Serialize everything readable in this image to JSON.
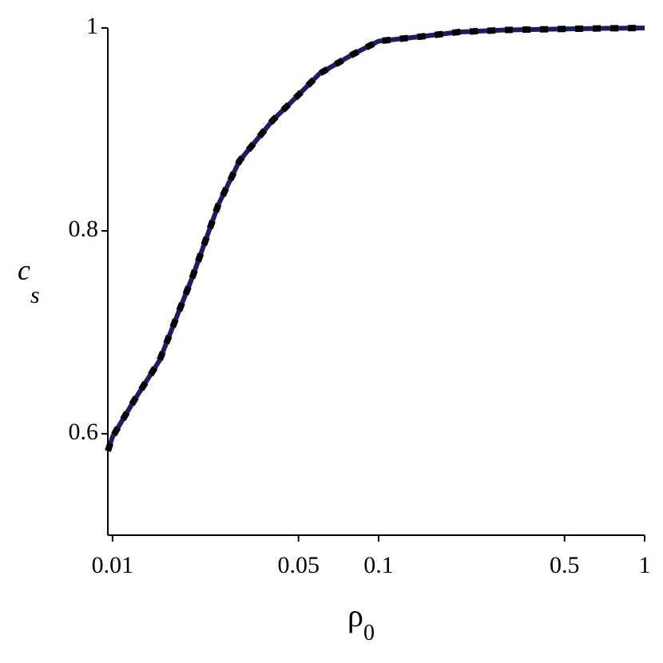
{
  "chart_data": {
    "type": "line",
    "xlabel": "ρ",
    "xlabel_subscript": "0",
    "ylabel": "c",
    "ylabel_subscript": "s",
    "x": [
      0.0096,
      0.01,
      0.012,
      0.015,
      0.02,
      0.025,
      0.03,
      0.04,
      0.05,
      0.06,
      0.08,
      0.1,
      0.15,
      0.2,
      0.3,
      0.5,
      0.7,
      1
    ],
    "series": [
      {
        "color": "#1c1c6b",
        "style": "solid",
        "values": [
          0.583,
          0.597,
          0.632,
          0.672,
          0.755,
          0.826,
          0.869,
          0.909,
          0.934,
          0.955,
          0.974,
          0.987,
          0.992,
          0.996,
          0.998,
          0.999,
          0.9996,
          1.0
        ]
      },
      {
        "color": "#000000",
        "style": "dashed",
        "values": [
          0.583,
          0.597,
          0.632,
          0.672,
          0.755,
          0.826,
          0.869,
          0.909,
          0.934,
          0.955,
          0.974,
          0.987,
          0.992,
          0.996,
          0.998,
          0.999,
          0.9996,
          1.0
        ]
      }
    ],
    "xscale": "log",
    "xlim": [
      0.0096,
      1
    ],
    "xticks": [
      0.01,
      0.05,
      0.1,
      0.5,
      1
    ],
    "ylim": [
      0.5,
      1
    ],
    "yticks": [
      0.6,
      0.8,
      1
    ]
  }
}
